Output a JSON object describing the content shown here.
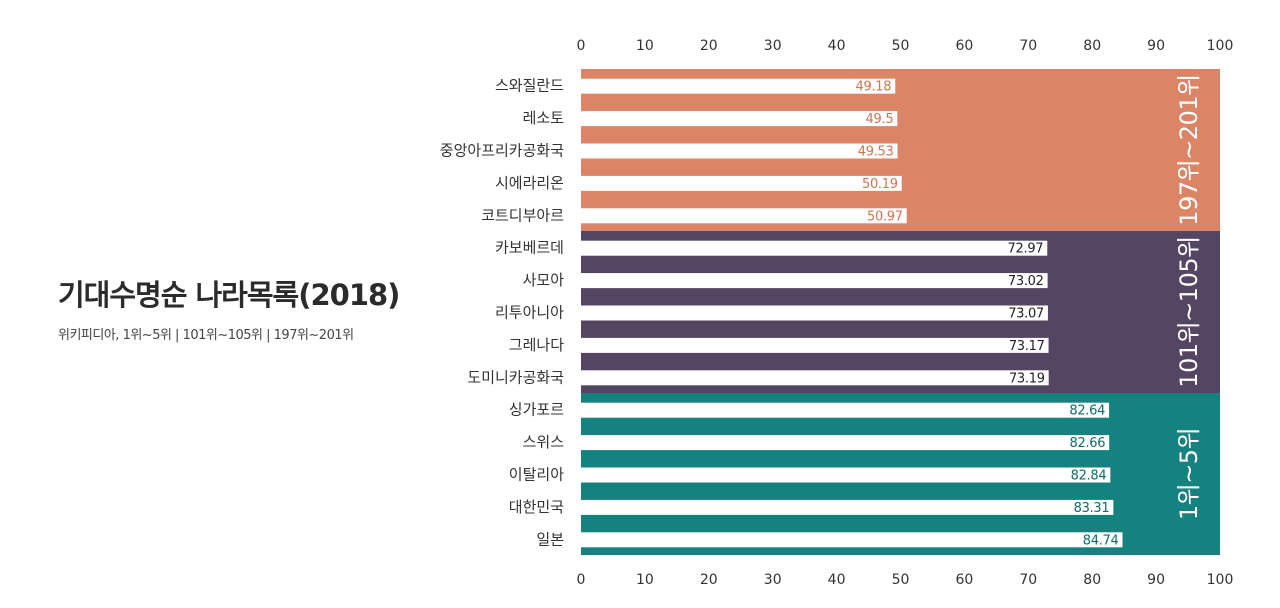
{
  "title": "기대수명순 나라목록(2018)",
  "subtitle": "위키피디아, 1위~5위 | 101위~105위 | 197위~201위",
  "chart_data": {
    "type": "bar",
    "orientation": "horizontal",
    "xlim": [
      0,
      100
    ],
    "ticks": [
      0,
      10,
      20,
      30,
      40,
      50,
      60,
      70,
      80,
      90,
      100
    ],
    "groups": [
      {
        "name": "197위~201위",
        "color": "#dc8566",
        "value_color": "#d0744f",
        "categories": [
          "스와질란드",
          "레소토",
          "중앙아프리카공화국",
          "시에라리온",
          "코트디부아르"
        ],
        "values": [
          49.18,
          49.5,
          49.53,
          50.19,
          50.97
        ]
      },
      {
        "name": "101위~105위",
        "color": "#544563",
        "value_color": "#222222",
        "categories": [
          "카보베르데",
          "사모아",
          "리투아니아",
          "그레나다",
          "도미니카공화국"
        ],
        "values": [
          72.97,
          73.02,
          73.07,
          73.17,
          73.19
        ]
      },
      {
        "name": "1위~5위",
        "color": "#168280",
        "value_color": "#0f6b6a",
        "categories": [
          "싱가포르",
          "스위스",
          "이탈리아",
          "대한민국",
          "일본"
        ],
        "values": [
          82.64,
          82.66,
          82.84,
          83.31,
          84.74
        ]
      }
    ]
  }
}
